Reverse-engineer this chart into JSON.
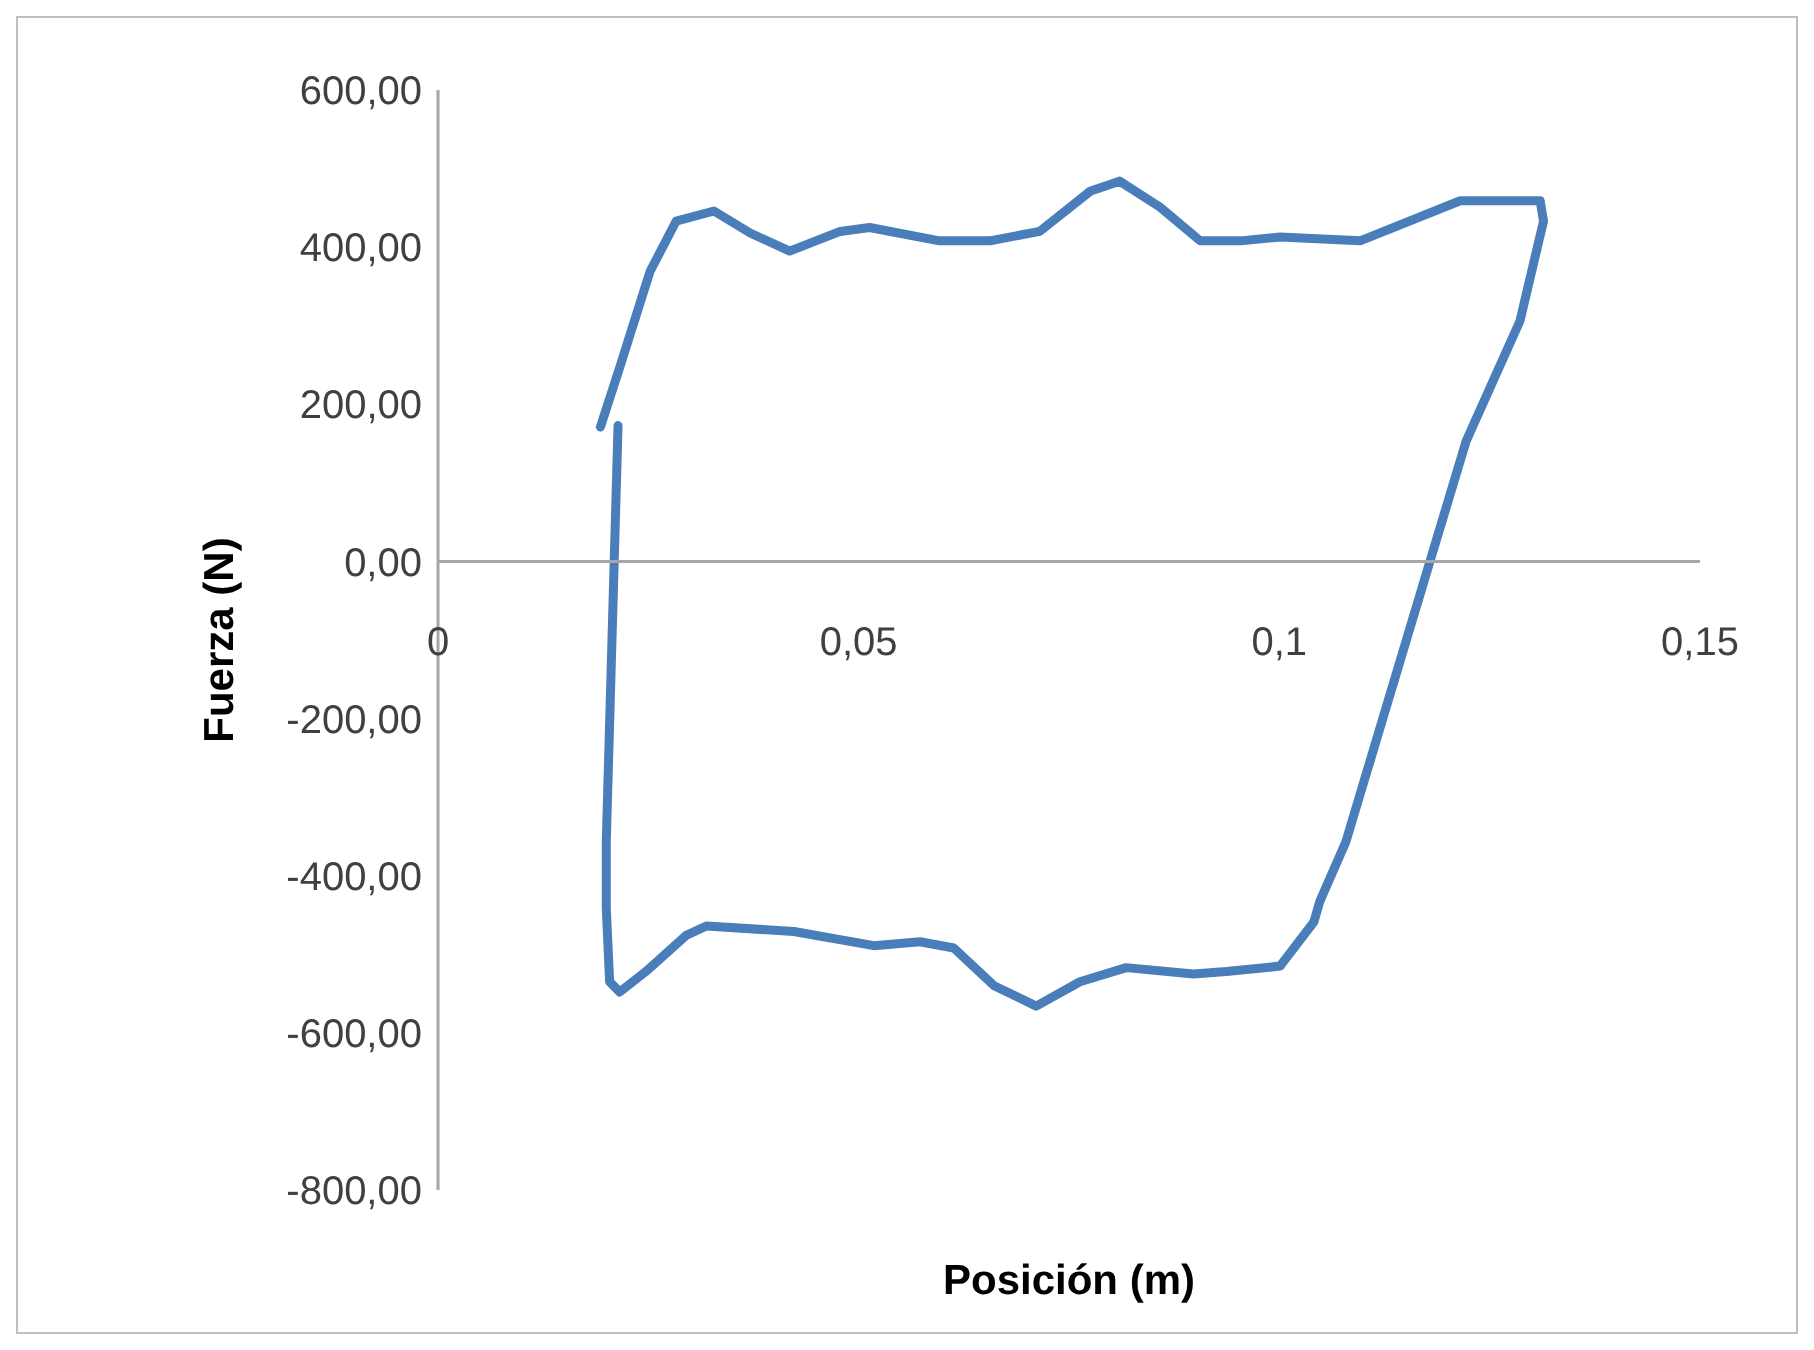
{
  "chart_data": {
    "type": "line",
    "xlabel": "Posición (m)",
    "ylabel": "Fuerza (N)",
    "xlim": [
      0,
      0.15
    ],
    "xticks": [
      0,
      {
        "value": 0.05,
        "label": "0,05"
      },
      {
        "value": 0.1,
        "label": "0,1"
      },
      {
        "value": 0.15,
        "label": "0,15"
      }
    ],
    "ylim": [
      -800,
      600
    ],
    "yticks": [
      {
        "value": 600,
        "label": "600,00"
      },
      {
        "value": 400,
        "label": "400,00"
      },
      {
        "value": 200,
        "label": "200,00"
      },
      {
        "value": 0,
        "label": "0,00"
      },
      {
        "value": -200,
        "label": "-200,00"
      },
      {
        "value": -400,
        "label": "-400,00"
      },
      {
        "value": -600,
        "label": "-600,00"
      },
      {
        "value": -800,
        "label": "-800,00"
      }
    ],
    "series": [
      {
        "color": "#4a7ebb",
        "x": [
          0.0193,
          0.0216,
          0.0252,
          0.0283,
          0.0328,
          0.0371,
          0.0418,
          0.0478,
          0.0513,
          0.0596,
          0.0656,
          0.0715,
          0.0775,
          0.081,
          0.0858,
          0.0906,
          0.0954,
          0.1001,
          0.1096,
          0.1215,
          0.131,
          0.1314,
          0.1286,
          0.1222,
          0.1179,
          0.1079,
          0.1048,
          0.1041,
          0.1001,
          0.0937,
          0.0898,
          0.0818,
          0.0763,
          0.0711,
          0.0661,
          0.0613,
          0.0573,
          0.0518,
          0.0423,
          0.0319,
          0.0295,
          0.0247,
          0.0216,
          0.0204,
          0.02,
          0.02,
          0.0214
        ],
        "values": [
          171,
          247,
          369,
          433,
          446,
          418,
          395,
          420,
          425,
          408,
          408,
          420,
          471,
          484,
          451,
          408,
          408,
          413,
          408,
          459,
          459,
          433,
          306,
          153,
          0,
          -357,
          -433,
          -459,
          -515,
          -522,
          -525,
          -517,
          -535,
          -566,
          -540,
          -492,
          -484,
          -489,
          -471,
          -464,
          -476,
          -522,
          -548,
          -535,
          -441,
          -357,
          173
        ]
      }
    ]
  }
}
